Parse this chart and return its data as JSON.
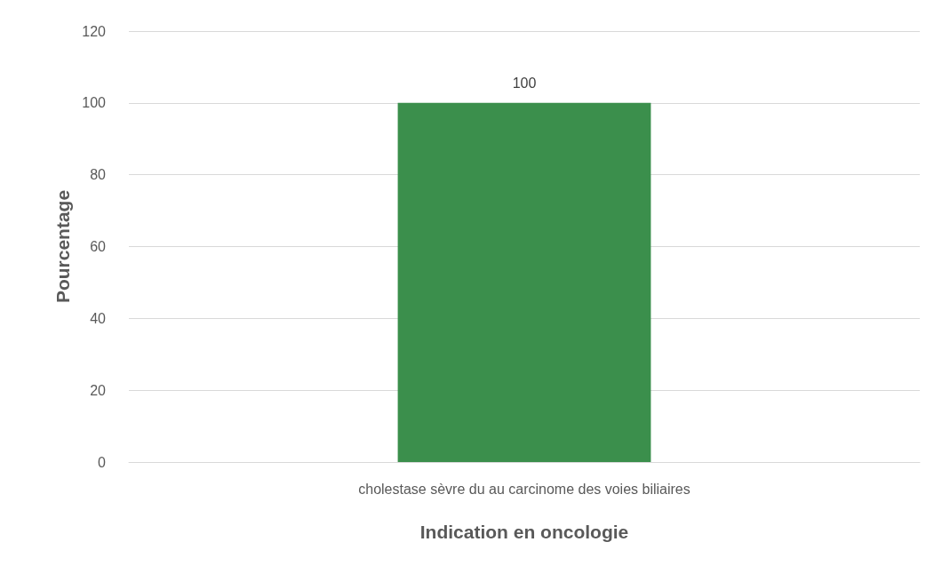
{
  "chart_data": {
    "type": "bar",
    "xlabel": "Indication en oncologie",
    "ylabel": "Pourcentage",
    "categories": [
      "cholestase sèvre du au carcinome des voies biliaires"
    ],
    "values": [
      100
    ],
    "color": "#3b8f4c",
    "ylim": [
      0,
      120
    ],
    "yticks": [
      0,
      20,
      40,
      60,
      80,
      100,
      120
    ],
    "grid": "y",
    "data_labels": true
  }
}
